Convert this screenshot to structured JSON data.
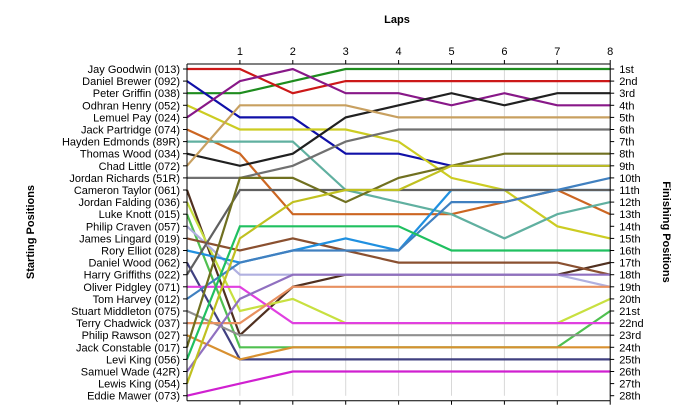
{
  "chart_data": {
    "type": "line",
    "title": "Laps",
    "ylabel_left": "Starting Positions",
    "ylabel_right": "Finishing Positions",
    "x": [
      0,
      1,
      2,
      3,
      4,
      5,
      6,
      7,
      8
    ],
    "x_tick_labels": [
      "1",
      "2",
      "3",
      "4",
      "5",
      "6",
      "7",
      "8"
    ],
    "y_range": [
      1,
      28
    ],
    "starting_labels": [
      "Jay Goodwin (013)",
      "Daniel Brewer (092)",
      "Peter Griffin (038)",
      "Odhran Henry (052)",
      "Lemuel Pay (024)",
      "Jack Partridge (074)",
      "Hayden Edmonds (89R)",
      "Thomas Wood (034)",
      "Chad Little (072)",
      "Jordan Richards (51R)",
      "Cameron Taylor (061)",
      "Jordan Falding (036)",
      "Luke Knott (015)",
      "Philip Craven (057)",
      "James Lingard (019)",
      "Rory Elliot (028)",
      "Daniel Wood (062)",
      "Harry Griffiths (022)",
      "Oliver Pidgley (071)",
      "Tom Harvey (012)",
      "Stuart Middleton (075)",
      "Terry Chadwick (037)",
      "Philip Rawson (027)",
      "Jack Constable (017)",
      "Levi King (056)",
      "Samuel Wade (42R)",
      "Lewis King (054)",
      "Eddie Mawer (073)"
    ],
    "finishing_labels": [
      "1st",
      "2nd",
      "3rd",
      "4th",
      "5th",
      "6th",
      "7th",
      "8th",
      "9th",
      "10th",
      "11th",
      "12th",
      "13th",
      "14th",
      "15th",
      "16th",
      "17th",
      "18th",
      "19th",
      "20th",
      "21st",
      "22nd",
      "23rd",
      "24th",
      "25th",
      "26th",
      "27th",
      "28th"
    ],
    "series": [
      {
        "color": "#1e8c1e",
        "values": [
          3,
          3,
          2,
          1,
          1,
          1,
          1,
          1,
          1
        ]
      },
      {
        "color": "#cc1818",
        "values": [
          1,
          1,
          3,
          2,
          2,
          2,
          2,
          2,
          2
        ]
      },
      {
        "color": "#1010a8",
        "values": [
          2,
          5,
          5,
          8,
          8,
          9,
          9,
          9,
          9
        ]
      },
      {
        "color": "#cccc22",
        "values": [
          4,
          6,
          6,
          6,
          7,
          10,
          11,
          14,
          15
        ]
      },
      {
        "color": "#881888",
        "values": [
          5,
          2,
          1,
          3,
          3,
          4,
          3,
          4,
          4
        ]
      },
      {
        "color": "#cc6622",
        "values": [
          6,
          8,
          13,
          13,
          13,
          13,
          12,
          11,
          13
        ]
      },
      {
        "color": "#60b0a0",
        "values": [
          7,
          7,
          7,
          11,
          12,
          13,
          15,
          13,
          12
        ]
      },
      {
        "color": "#202020",
        "values": [
          8,
          9,
          8,
          5,
          4,
          3,
          4,
          3,
          3
        ]
      },
      {
        "color": "#c8a060",
        "values": [
          9,
          4,
          4,
          4,
          5,
          5,
          5,
          5,
          5
        ]
      },
      {
        "color": "#707070",
        "values": [
          10,
          10,
          9,
          7,
          6,
          6,
          6,
          6,
          6
        ]
      },
      {
        "color": "#503020",
        "values": [
          11,
          23,
          19,
          18,
          18,
          18,
          18,
          18,
          17
        ]
      },
      {
        "color": "#c8e040",
        "values": [
          12,
          21,
          20,
          22,
          22,
          22,
          22,
          22,
          20
        ]
      },
      {
        "color": "#50c050",
        "values": [
          13,
          24,
          24,
          24,
          24,
          24,
          24,
          24,
          21
        ]
      },
      {
        "color": "#b0b0e0",
        "values": [
          14,
          18,
          18,
          18,
          18,
          18,
          18,
          18,
          19
        ]
      },
      {
        "color": "#8a5030",
        "values": [
          15,
          16,
          15,
          16,
          17,
          17,
          17,
          17,
          18
        ]
      },
      {
        "color": "#2090e0",
        "values": [
          16,
          17,
          16,
          15,
          16,
          11,
          11,
          11,
          11
        ]
      },
      {
        "color": "#404080",
        "values": [
          17,
          25,
          25,
          25,
          25,
          25,
          25,
          25,
          25
        ]
      },
      {
        "color": "#606060",
        "values": [
          18,
          11,
          11,
          11,
          11,
          11,
          11,
          11,
          11
        ]
      },
      {
        "color": "#e040e0",
        "values": [
          19,
          19,
          22,
          22,
          22,
          22,
          22,
          22,
          22
        ]
      },
      {
        "color": "#4080c0",
        "values": [
          20,
          17,
          16,
          16,
          16,
          12,
          12,
          11,
          10
        ]
      },
      {
        "color": "#909090",
        "values": [
          21,
          23,
          23,
          23,
          23,
          23,
          23,
          23,
          23
        ]
      },
      {
        "color": "#e89060",
        "values": [
          22,
          22,
          19,
          19,
          19,
          19,
          19,
          19,
          19
        ]
      },
      {
        "color": "#d89030",
        "values": [
          23,
          25,
          24,
          24,
          24,
          24,
          24,
          24,
          24
        ]
      },
      {
        "color": "#707020",
        "values": [
          24,
          10,
          10,
          12,
          10,
          9,
          8,
          8,
          8
        ]
      },
      {
        "color": "#20c060",
        "values": [
          25,
          14,
          14,
          14,
          14,
          16,
          16,
          16,
          16
        ]
      },
      {
        "color": "#9070c0",
        "values": [
          26,
          20,
          18,
          18,
          18,
          18,
          18,
          18,
          18
        ]
      },
      {
        "color": "#c0c020",
        "values": [
          27,
          15,
          12,
          11,
          11,
          9,
          9,
          9,
          9
        ]
      },
      {
        "color": "#d020d0",
        "values": [
          28,
          27,
          26,
          26,
          26,
          26,
          26,
          26,
          26
        ]
      }
    ]
  }
}
